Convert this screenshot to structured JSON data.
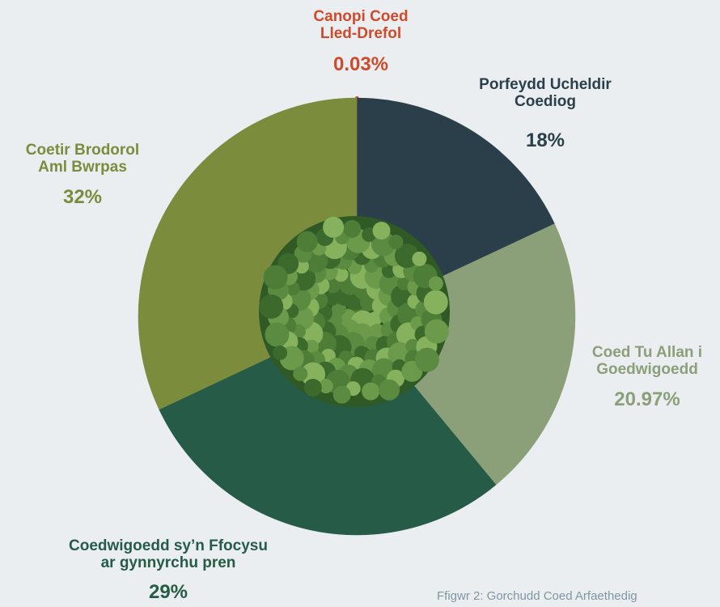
{
  "chart_data": {
    "type": "pie",
    "categories": [
      "Canopi Coed\nLled-Drefol",
      "Porfeydd Ucheldir\nCoediog",
      "Coed Tu Allan i\nGoedwigoedd",
      "Coedwigoedd sy’n Ffocysu\nar gynnyrchu pren",
      "Coetir Brodorol\nAml Bwrpas"
    ],
    "values": [
      0.03,
      18,
      20.97,
      29,
      32
    ],
    "value_labels": [
      "0.03%",
      "18%",
      "20.97%",
      "29%",
      "32%"
    ],
    "colors": [
      "#cf4a2b",
      "#2b3f4a",
      "#8b9f79",
      "#265b47",
      "#7c8c3d"
    ],
    "caption": "Ffigwr 2: Gorchudd Coed Arfaethedig"
  }
}
